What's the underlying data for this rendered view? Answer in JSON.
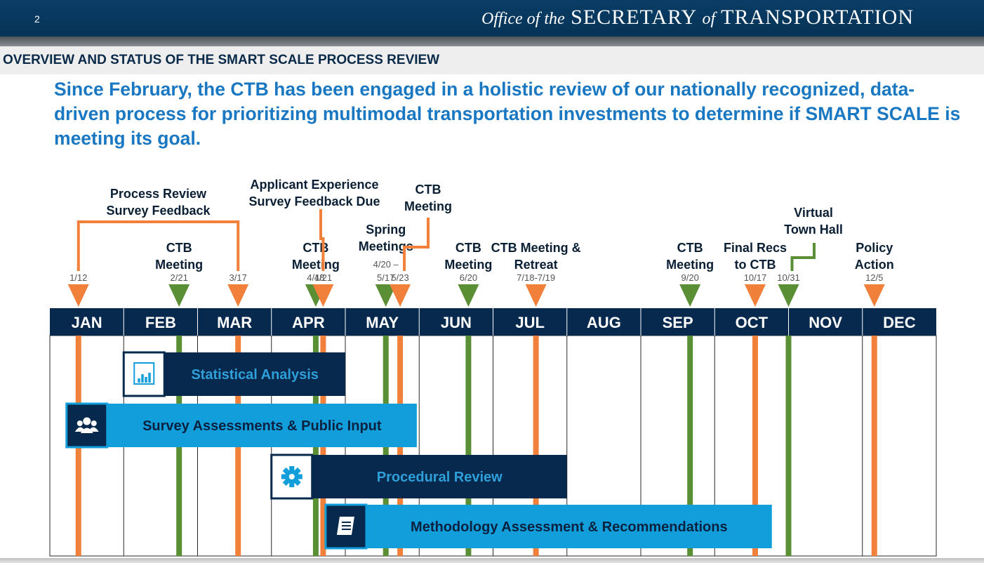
{
  "header": {
    "page_number": "2",
    "office_prefix": "Office of the",
    "office_secretary": "SECRETARY",
    "office_of": "of",
    "office_transportation": "TRANSPORTATION"
  },
  "subheader": {
    "title": "OVERVIEW AND STATUS OF THE SMART SCALE PROCESS REVIEW"
  },
  "lead_text": "Since February, the CTB has been engaged in a holistic review of our nationally recognized, data-driven process for prioritizing multimodal transportation investments to determine if SMART SCALE is meeting its goal.",
  "colors": {
    "navy": "#06294d",
    "light_blue": "#129edb",
    "orange": "#f0803a",
    "green": "#5a8f35",
    "label_blue": "#2f9fd9"
  },
  "timeline": {
    "months": [
      "JAN",
      "FEB",
      "MAR",
      "APR",
      "MAY",
      "JUN",
      "JUL",
      "AUG",
      "SEP",
      "OCT",
      "NOV",
      "DEC"
    ],
    "markers": [
      {
        "id": "m-1-12",
        "month": 0,
        "day": 12,
        "color": "orange",
        "date": "1/12",
        "label": []
      },
      {
        "id": "m-2-21",
        "month": 1,
        "day": 21,
        "color": "green",
        "date": "2/21",
        "label": [
          "CTB",
          "Meeting"
        ]
      },
      {
        "id": "m-3-17",
        "month": 2,
        "day": 17,
        "color": "orange",
        "date": "3/17",
        "label": []
      },
      {
        "id": "m-4-18",
        "month": 3,
        "day": 18,
        "color": "green",
        "date": "4/18",
        "label": [
          "CTB",
          "Meeting"
        ]
      },
      {
        "id": "m-4-21",
        "month": 3,
        "day": 21,
        "color": "orange",
        "date": "4/21",
        "label": []
      },
      {
        "id": "m-5-17",
        "month": 4,
        "day": 17,
        "color": "green",
        "date": "4/20 –|5/17",
        "label": [
          "Spring",
          "Meetings"
        ]
      },
      {
        "id": "m-5-23",
        "month": 4,
        "day": 23,
        "color": "orange",
        "date": "5/23",
        "label": []
      },
      {
        "id": "m-6-20",
        "month": 5,
        "day": 20,
        "color": "green",
        "date": "6/20",
        "label": [
          "CTB",
          "Meeting"
        ]
      },
      {
        "id": "m-7-18",
        "month": 6,
        "day": 18,
        "color": "orange",
        "date": "7/18-7/19",
        "label": [
          "CTB Meeting &",
          "Retreat"
        ]
      },
      {
        "id": "m-9-20",
        "month": 8,
        "day": 20,
        "color": "green",
        "date": "9/20",
        "label": [
          "CTB",
          "Meeting"
        ]
      },
      {
        "id": "m-10-17",
        "month": 9,
        "day": 17,
        "color": "orange",
        "date": "10/17",
        "label": [
          "Final Recs",
          "to CTB"
        ]
      },
      {
        "id": "m-10-31",
        "month": 9,
        "day": 31,
        "color": "green",
        "date": "10/31",
        "label": []
      },
      {
        "id": "m-12-5",
        "month": 11,
        "day": 5,
        "color": "orange",
        "date": "12/5",
        "label": [
          "Policy",
          "Action"
        ]
      }
    ],
    "callouts": [
      {
        "id": "process-review",
        "text": [
          "Process Review",
          "Survey Feedback"
        ]
      },
      {
        "id": "applicant-experience",
        "text": [
          "Applicant Experience",
          "Survey Feedback Due"
        ]
      },
      {
        "id": "ctb-meeting-may",
        "text": [
          "CTB",
          "Meeting"
        ]
      },
      {
        "id": "virtual-town-hall",
        "text": [
          "Virtual",
          "Town Hall"
        ]
      }
    ],
    "phases": [
      {
        "id": "statistical-analysis",
        "label": "Statistical Analysis",
        "icon": "bar-chart-icon",
        "style": "navy",
        "start": [
          1,
          0
        ],
        "end": [
          4,
          0
        ]
      },
      {
        "id": "survey-assessments",
        "label": "Survey Assessments & Public Input",
        "icon": "people-icon",
        "style": "light",
        "start": [
          0,
          7
        ],
        "end": [
          4,
          30
        ]
      },
      {
        "id": "procedural-review",
        "label": "Procedural Review",
        "icon": "gear-icon",
        "style": "navy",
        "start": [
          3,
          0
        ],
        "end": [
          6,
          31
        ]
      },
      {
        "id": "methodology-assessment",
        "label": "Methodology Assessment & Recommendations",
        "icon": "book-icon",
        "style": "light",
        "start": [
          3,
          22
        ],
        "end": [
          9,
          24
        ]
      }
    ]
  }
}
